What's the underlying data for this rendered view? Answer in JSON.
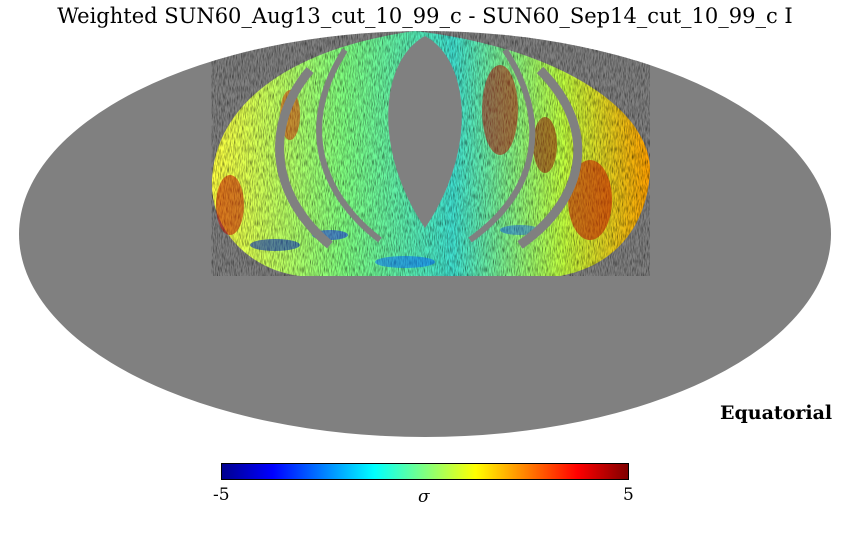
{
  "title": "Weighted SUN60_Aug13_cut_10_99_c - SUN60_Sep14_cut_10_99_c I",
  "coordinate_system": "Equatorial",
  "projection": "Mollweide",
  "colorbar": {
    "min_label": "-5",
    "max_label": "5",
    "unit": "σ",
    "colormap": "jet",
    "colors": [
      "#00008f",
      "#0000ff",
      "#0080ff",
      "#00ffff",
      "#80ff80",
      "#ffff00",
      "#ff8000",
      "#ff0000",
      "#800000"
    ]
  },
  "colors": {
    "masked": "#808080",
    "background": "#ffffff"
  }
}
